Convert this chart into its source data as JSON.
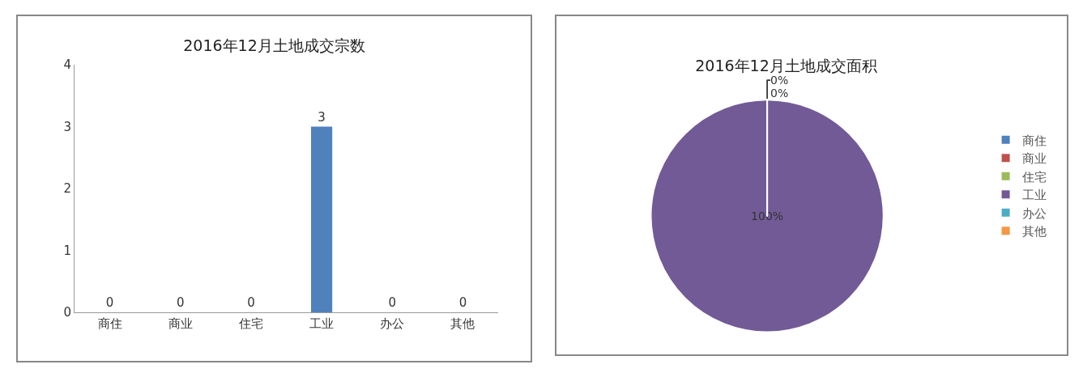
{
  "chart_data": [
    {
      "type": "bar",
      "title": "2016年12月土地成交宗数",
      "categories": [
        "商住",
        "商业",
        "住宅",
        "工业",
        "办公",
        "其他"
      ],
      "values": [
        0,
        0,
        0,
        3,
        0,
        0
      ],
      "color": "#4f81bd",
      "ylim": [
        0,
        4
      ],
      "yticks": [
        0,
        1,
        2,
        3,
        4
      ],
      "data_labels": true
    },
    {
      "type": "pie",
      "title": "2016年12月土地成交面积",
      "categories": [
        "商住",
        "商业",
        "住宅",
        "工业",
        "办公",
        "其他"
      ],
      "values": [
        0,
        0,
        0,
        100,
        0,
        0
      ],
      "colors": [
        "#4f81bd",
        "#c0504d",
        "#9bbb59",
        "#725a96",
        "#4bacc6",
        "#f79646"
      ],
      "value_labels": [
        "0%",
        "0%",
        null,
        "100%",
        null,
        null
      ],
      "legend": "right"
    }
  ]
}
